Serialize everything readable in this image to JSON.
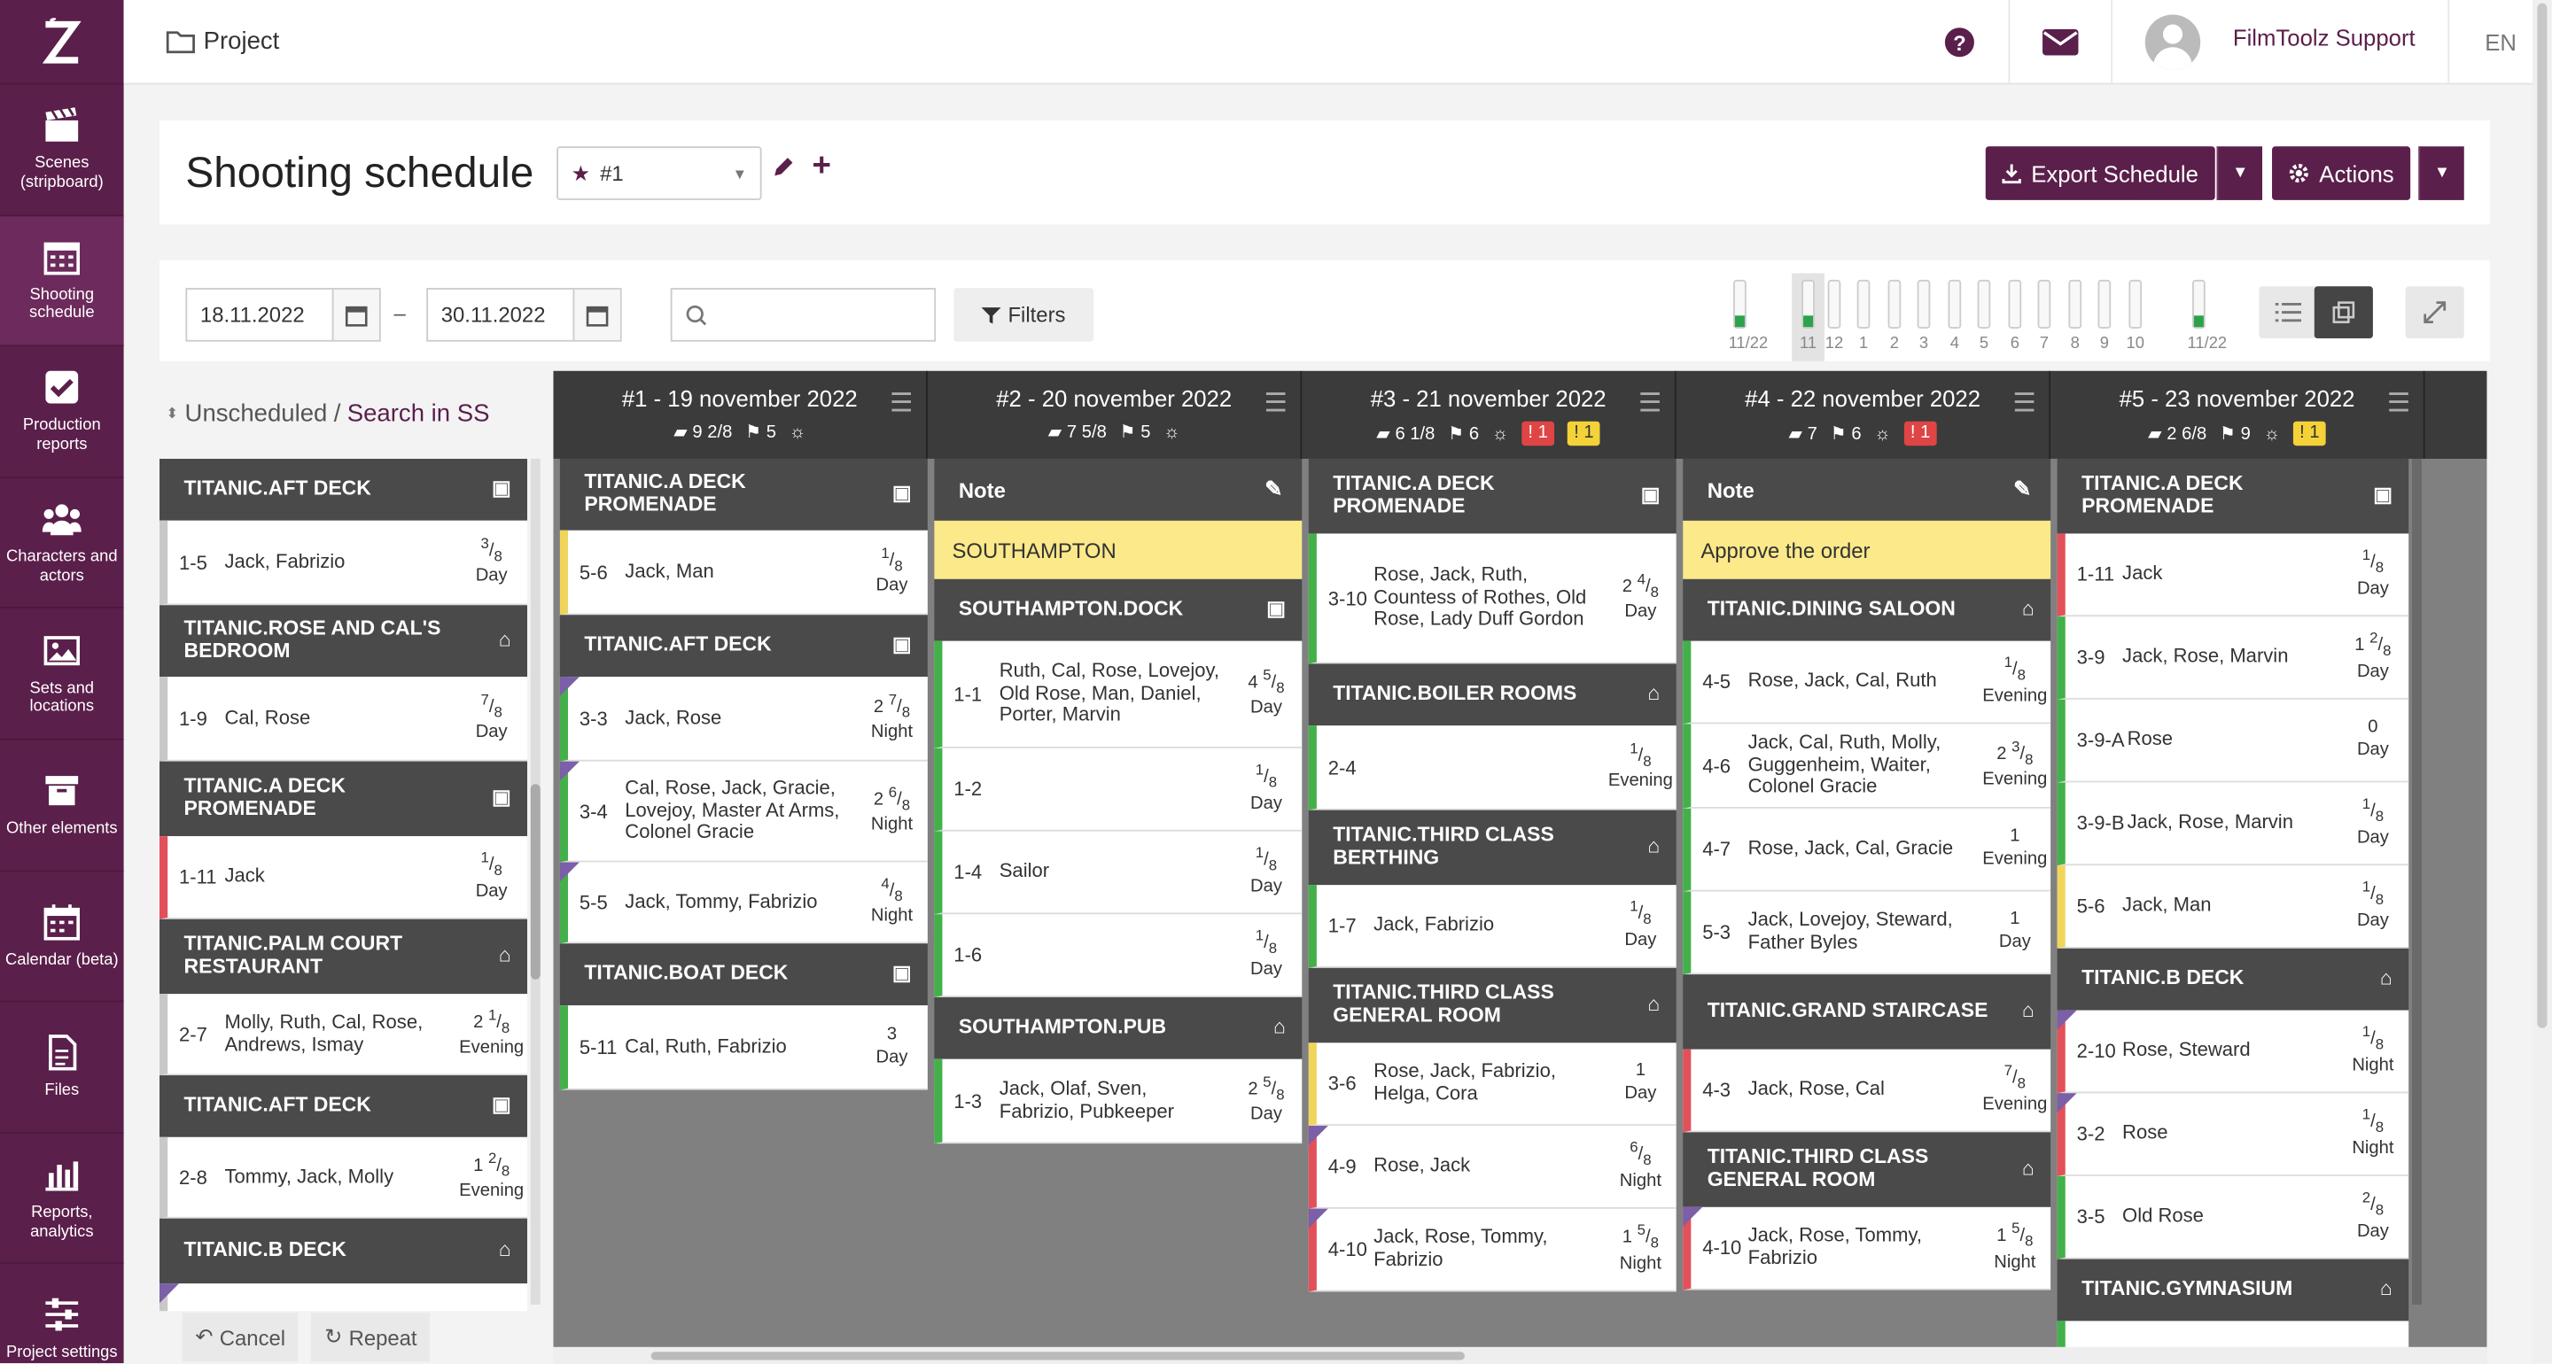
{
  "sidebar": {
    "items": [
      {
        "label": "Scenes (stripboard)",
        "icon": "clapperboard-icon"
      },
      {
        "label": "Shooting schedule",
        "icon": "calendar-grid-icon"
      },
      {
        "label": "Production reports",
        "icon": "checkbox-icon"
      },
      {
        "label": "Characters and actors",
        "icon": "users-icon"
      },
      {
        "label": "Sets and locations",
        "icon": "image-icon"
      },
      {
        "label": "Other elements",
        "icon": "archive-icon"
      },
      {
        "label": "Calendar (beta)",
        "icon": "calendar-icon"
      },
      {
        "label": "Files",
        "icon": "file-icon"
      },
      {
        "label": "Reports, analytics",
        "icon": "bar-chart-icon"
      },
      {
        "label": "Project settings",
        "icon": "sliders-icon"
      }
    ]
  },
  "topbar": {
    "project": "Project",
    "user": "FilmToolz Support",
    "lang": "EN"
  },
  "header": {
    "title": "Shooting schedule",
    "schedule": "#1",
    "export": "Export Schedule",
    "actions": "Actions"
  },
  "filters": {
    "date_from": "18.11.2022",
    "date_to": "30.11.2022",
    "dash": "–",
    "filters_label": "Filters"
  },
  "mini_days": [
    "11/22",
    "11",
    "12",
    "1",
    "2",
    "3",
    "4",
    "5",
    "6",
    "7",
    "8",
    "9",
    "10",
    "11/22"
  ],
  "unscheduled": {
    "title": "Unscheduled",
    "sep": "/",
    "link": "Search in SS"
  },
  "bottom": {
    "cancel": "Cancel",
    "repeat": "Repeat"
  },
  "days": [
    {
      "title": "#1 - 19 november 2022",
      "pages": "9 2/8",
      "scenes": "5",
      "badges": []
    },
    {
      "title": "#2 - 20 november 2022",
      "pages": "7 5/8",
      "scenes": "5",
      "badges": []
    },
    {
      "title": "#3 - 21 november 2022",
      "pages": "6 1/8",
      "scenes": "6",
      "badges": [
        {
          "t": "red",
          "v": "1"
        },
        {
          "t": "yel",
          "v": "1"
        }
      ]
    },
    {
      "title": "#4 - 22 november 2022",
      "pages": "7",
      "scenes": "6",
      "badges": [
        {
          "t": "red",
          "v": "1"
        }
      ]
    },
    {
      "title": "#5 - 23 november 2022",
      "pages": "2 6/8",
      "scenes": "9",
      "badges": [
        {
          "t": "yel",
          "v": "1"
        }
      ]
    }
  ]
}
